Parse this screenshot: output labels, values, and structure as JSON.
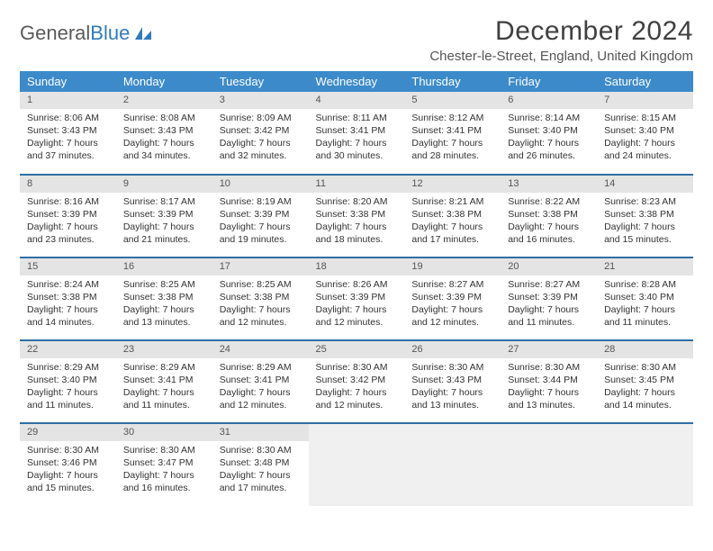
{
  "logo": {
    "text1": "General",
    "text2": "Blue"
  },
  "title": "December 2024",
  "location": "Chester-le-Street, England, United Kingdom",
  "colors": {
    "header_bg": "#3c8ac9",
    "header_text": "#ffffff",
    "daynum_bg": "#e4e4e4",
    "week_border": "#2f6fa6",
    "logo_blue": "#2f7bbf"
  },
  "day_headers": [
    "Sunday",
    "Monday",
    "Tuesday",
    "Wednesday",
    "Thursday",
    "Friday",
    "Saturday"
  ],
  "weeks": [
    [
      {
        "n": "1",
        "sr": "8:06 AM",
        "ss": "3:43 PM",
        "dl": "7 hours and 37 minutes."
      },
      {
        "n": "2",
        "sr": "8:08 AM",
        "ss": "3:43 PM",
        "dl": "7 hours and 34 minutes."
      },
      {
        "n": "3",
        "sr": "8:09 AM",
        "ss": "3:42 PM",
        "dl": "7 hours and 32 minutes."
      },
      {
        "n": "4",
        "sr": "8:11 AM",
        "ss": "3:41 PM",
        "dl": "7 hours and 30 minutes."
      },
      {
        "n": "5",
        "sr": "8:12 AM",
        "ss": "3:41 PM",
        "dl": "7 hours and 28 minutes."
      },
      {
        "n": "6",
        "sr": "8:14 AM",
        "ss": "3:40 PM",
        "dl": "7 hours and 26 minutes."
      },
      {
        "n": "7",
        "sr": "8:15 AM",
        "ss": "3:40 PM",
        "dl": "7 hours and 24 minutes."
      }
    ],
    [
      {
        "n": "8",
        "sr": "8:16 AM",
        "ss": "3:39 PM",
        "dl": "7 hours and 23 minutes."
      },
      {
        "n": "9",
        "sr": "8:17 AM",
        "ss": "3:39 PM",
        "dl": "7 hours and 21 minutes."
      },
      {
        "n": "10",
        "sr": "8:19 AM",
        "ss": "3:39 PM",
        "dl": "7 hours and 19 minutes."
      },
      {
        "n": "11",
        "sr": "8:20 AM",
        "ss": "3:38 PM",
        "dl": "7 hours and 18 minutes."
      },
      {
        "n": "12",
        "sr": "8:21 AM",
        "ss": "3:38 PM",
        "dl": "7 hours and 17 minutes."
      },
      {
        "n": "13",
        "sr": "8:22 AM",
        "ss": "3:38 PM",
        "dl": "7 hours and 16 minutes."
      },
      {
        "n": "14",
        "sr": "8:23 AM",
        "ss": "3:38 PM",
        "dl": "7 hours and 15 minutes."
      }
    ],
    [
      {
        "n": "15",
        "sr": "8:24 AM",
        "ss": "3:38 PM",
        "dl": "7 hours and 14 minutes."
      },
      {
        "n": "16",
        "sr": "8:25 AM",
        "ss": "3:38 PM",
        "dl": "7 hours and 13 minutes."
      },
      {
        "n": "17",
        "sr": "8:25 AM",
        "ss": "3:38 PM",
        "dl": "7 hours and 12 minutes."
      },
      {
        "n": "18",
        "sr": "8:26 AM",
        "ss": "3:39 PM",
        "dl": "7 hours and 12 minutes."
      },
      {
        "n": "19",
        "sr": "8:27 AM",
        "ss": "3:39 PM",
        "dl": "7 hours and 12 minutes."
      },
      {
        "n": "20",
        "sr": "8:27 AM",
        "ss": "3:39 PM",
        "dl": "7 hours and 11 minutes."
      },
      {
        "n": "21",
        "sr": "8:28 AM",
        "ss": "3:40 PM",
        "dl": "7 hours and 11 minutes."
      }
    ],
    [
      {
        "n": "22",
        "sr": "8:29 AM",
        "ss": "3:40 PM",
        "dl": "7 hours and 11 minutes."
      },
      {
        "n": "23",
        "sr": "8:29 AM",
        "ss": "3:41 PM",
        "dl": "7 hours and 11 minutes."
      },
      {
        "n": "24",
        "sr": "8:29 AM",
        "ss": "3:41 PM",
        "dl": "7 hours and 12 minutes."
      },
      {
        "n": "25",
        "sr": "8:30 AM",
        "ss": "3:42 PM",
        "dl": "7 hours and 12 minutes."
      },
      {
        "n": "26",
        "sr": "8:30 AM",
        "ss": "3:43 PM",
        "dl": "7 hours and 13 minutes."
      },
      {
        "n": "27",
        "sr": "8:30 AM",
        "ss": "3:44 PM",
        "dl": "7 hours and 13 minutes."
      },
      {
        "n": "28",
        "sr": "8:30 AM",
        "ss": "3:45 PM",
        "dl": "7 hours and 14 minutes."
      }
    ],
    [
      {
        "n": "29",
        "sr": "8:30 AM",
        "ss": "3:46 PM",
        "dl": "7 hours and 15 minutes."
      },
      {
        "n": "30",
        "sr": "8:30 AM",
        "ss": "3:47 PM",
        "dl": "7 hours and 16 minutes."
      },
      {
        "n": "31",
        "sr": "8:30 AM",
        "ss": "3:48 PM",
        "dl": "7 hours and 17 minutes."
      },
      null,
      null,
      null,
      null
    ]
  ],
  "labels": {
    "sunrise": "Sunrise:",
    "sunset": "Sunset:",
    "daylight": "Daylight:"
  }
}
